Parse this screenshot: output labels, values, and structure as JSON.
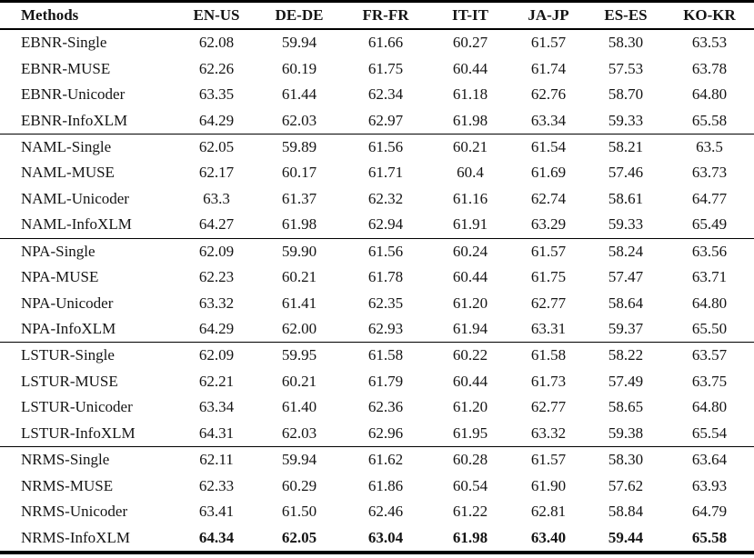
{
  "colors": {
    "background": "#ffffff",
    "text": "#141414",
    "rule": "#000000"
  },
  "table": {
    "columns": [
      "Methods",
      "EN-US",
      "DE-DE",
      "FR-FR",
      "IT-IT",
      "JA-JP",
      "ES-ES",
      "KO-KR"
    ],
    "groups": [
      {
        "name": "EBNR",
        "rows": [
          {
            "method": "EBNR-Single",
            "values": [
              "62.08",
              "59.94",
              "61.66",
              "60.27",
              "61.57",
              "58.30",
              "63.53"
            ],
            "bold": false
          },
          {
            "method": "EBNR-MUSE",
            "values": [
              "62.26",
              "60.19",
              "61.75",
              "60.44",
              "61.74",
              "57.53",
              "63.78"
            ],
            "bold": false
          },
          {
            "method": "EBNR-Unicoder",
            "values": [
              "63.35",
              "61.44",
              "62.34",
              "61.18",
              "62.76",
              "58.70",
              "64.80"
            ],
            "bold": false
          },
          {
            "method": "EBNR-InfoXLM",
            "values": [
              "64.29",
              "62.03",
              "62.97",
              "61.98",
              "63.34",
              "59.33",
              "65.58"
            ],
            "bold": false
          }
        ]
      },
      {
        "name": "NAML",
        "rows": [
          {
            "method": "NAML-Single",
            "values": [
              "62.05",
              "59.89",
              "61.56",
              "60.21",
              "61.54",
              "58.21",
              "63.5"
            ],
            "bold": false
          },
          {
            "method": "NAML-MUSE",
            "values": [
              "62.17",
              "60.17",
              "61.71",
              "60.4",
              "61.69",
              "57.46",
              "63.73"
            ],
            "bold": false
          },
          {
            "method": "NAML-Unicoder",
            "values": [
              "63.3",
              "61.37",
              "62.32",
              "61.16",
              "62.74",
              "58.61",
              "64.77"
            ],
            "bold": false
          },
          {
            "method": "NAML-InfoXLM",
            "values": [
              "64.27",
              "61.98",
              "62.94",
              "61.91",
              "63.29",
              "59.33",
              "65.49"
            ],
            "bold": false
          }
        ]
      },
      {
        "name": "NPA",
        "rows": [
          {
            "method": "NPA-Single",
            "values": [
              "62.09",
              "59.90",
              "61.56",
              "60.24",
              "61.57",
              "58.24",
              "63.56"
            ],
            "bold": false
          },
          {
            "method": "NPA-MUSE",
            "values": [
              "62.23",
              "60.21",
              "61.78",
              "60.44",
              "61.75",
              "57.47",
              "63.71"
            ],
            "bold": false
          },
          {
            "method": "NPA-Unicoder",
            "values": [
              "63.32",
              "61.41",
              "62.35",
              "61.20",
              "62.77",
              "58.64",
              "64.80"
            ],
            "bold": false
          },
          {
            "method": "NPA-InfoXLM",
            "values": [
              "64.29",
              "62.00",
              "62.93",
              "61.94",
              "63.31",
              "59.37",
              "65.50"
            ],
            "bold": false
          }
        ]
      },
      {
        "name": "LSTUR",
        "rows": [
          {
            "method": "LSTUR-Single",
            "values": [
              "62.09",
              "59.95",
              "61.58",
              "60.22",
              "61.58",
              "58.22",
              "63.57"
            ],
            "bold": false
          },
          {
            "method": "LSTUR-MUSE",
            "values": [
              "62.21",
              "60.21",
              "61.79",
              "60.44",
              "61.73",
              "57.49",
              "63.75"
            ],
            "bold": false
          },
          {
            "method": "LSTUR-Unicoder",
            "values": [
              "63.34",
              "61.40",
              "62.36",
              "61.20",
              "62.77",
              "58.65",
              "64.80"
            ],
            "bold": false
          },
          {
            "method": "LSTUR-InfoXLM",
            "values": [
              "64.31",
              "62.03",
              "62.96",
              "61.95",
              "63.32",
              "59.38",
              "65.54"
            ],
            "bold": false
          }
        ]
      },
      {
        "name": "NRMS",
        "rows": [
          {
            "method": "NRMS-Single",
            "values": [
              "62.11",
              "59.94",
              "61.62",
              "60.28",
              "61.57",
              "58.30",
              "63.64"
            ],
            "bold": false
          },
          {
            "method": "NRMS-MUSE",
            "values": [
              "62.33",
              "60.29",
              "61.86",
              "60.54",
              "61.90",
              "57.62",
              "63.93"
            ],
            "bold": false
          },
          {
            "method": "NRMS-Unicoder",
            "values": [
              "63.41",
              "61.50",
              "62.46",
              "61.22",
              "62.81",
              "58.84",
              "64.79"
            ],
            "bold": false
          },
          {
            "method": "NRMS-InfoXLM",
            "values": [
              "64.34",
              "62.05",
              "63.04",
              "61.98",
              "63.40",
              "59.44",
              "65.58"
            ],
            "bold": true
          }
        ]
      }
    ]
  }
}
